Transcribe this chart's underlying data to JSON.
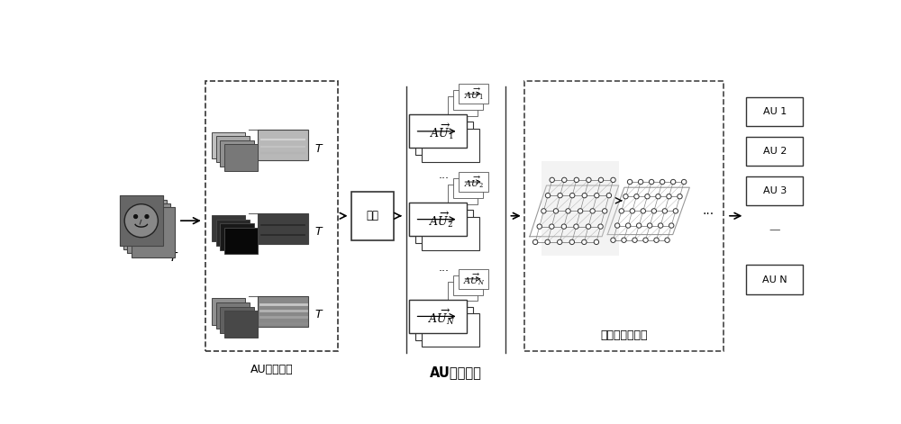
{
  "bg_color": "#ffffff",
  "fig_width": 10.0,
  "fig_height": 4.71,
  "label_au_local": "AU局部区域",
  "label_au_feature": "AU特征向量",
  "label_encode": "编码",
  "label_stgcn": "时序图卷积网络",
  "label_T": "T",
  "au_out_labels": [
    "AU 1",
    "AU 2",
    "AU 3",
    "—",
    "AU N"
  ],
  "group_colors": [
    [
      "#c8c8c8",
      "#b0b0b0",
      "#989898",
      "#808080"
    ],
    [
      "#484848",
      "#383838",
      "#282828",
      "#181818"
    ],
    [
      "#a0a0a0",
      "#888888",
      "#707070",
      "#585858"
    ]
  ]
}
